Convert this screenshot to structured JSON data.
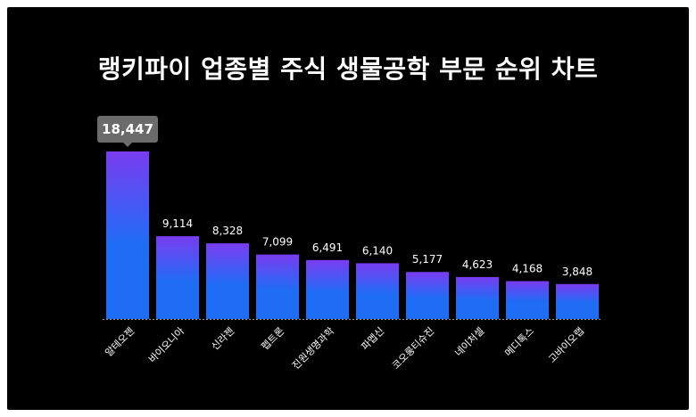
{
  "chart_data": {
    "type": "bar",
    "title": "랭키파이 업종별 주식 생물공학 부문 순위 차트",
    "categories": [
      "알테오젠",
      "바이오니아",
      "신라젠",
      "펩트론",
      "진원생명과학",
      "파멥신",
      "코오롱티슈진",
      "네이처셀",
      "메디톡스",
      "고바이오랩"
    ],
    "values": [
      18447,
      9114,
      8328,
      7099,
      6491,
      6140,
      5177,
      4623,
      4168,
      3848
    ],
    "value_labels": [
      "18,447",
      "9,114",
      "8,328",
      "7,099",
      "6,491",
      "6,140",
      "5,177",
      "4,623",
      "4,168",
      "3,848"
    ],
    "highlight_index": 0,
    "grid": false,
    "colors": {
      "background": "#000000",
      "bar_top": "#7a3cf0",
      "bar_bottom": "#1f6cf5",
      "tooltip": "#6b6b6b",
      "baseline": "#9a9a9a"
    }
  }
}
